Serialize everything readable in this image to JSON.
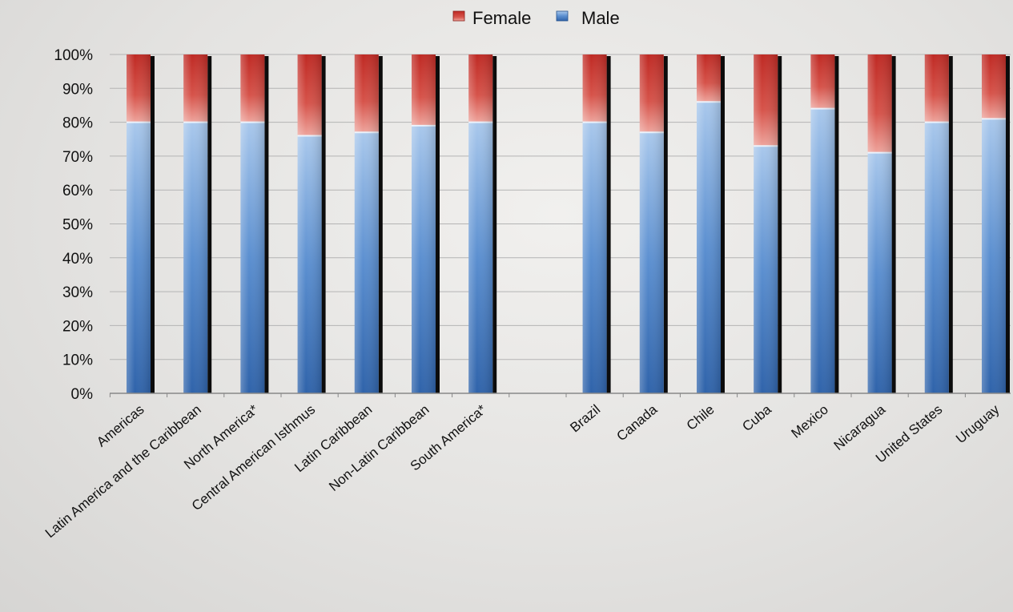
{
  "chart_data": {
    "type": "bar",
    "stacked": true,
    "percent": true,
    "categories": [
      "Americas",
      "Latin America and the Caribbean",
      "North America*",
      "Central American Isthmus",
      "Latin Caribbean",
      "Non-Latin Caribbean",
      "South America*",
      "",
      "Brazil",
      "Canada",
      "Chile",
      "Cuba",
      "Mexico",
      "Nicaragua",
      "United States",
      "Uruguay"
    ],
    "series": [
      {
        "name": "Male",
        "color": "#3f77c0",
        "values": [
          80,
          80,
          80,
          76,
          77,
          79,
          80,
          null,
          80,
          77,
          86,
          73,
          84,
          71,
          80,
          81
        ]
      },
      {
        "name": "Female",
        "color": "#cc3a32",
        "values": [
          20,
          20,
          20,
          24,
          23,
          21,
          20,
          null,
          20,
          23,
          14,
          27,
          16,
          29,
          20,
          19
        ]
      }
    ],
    "ylim": [
      0,
      100
    ],
    "yticks": [
      "0%",
      "10%",
      "20%",
      "30%",
      "40%",
      "50%",
      "60%",
      "70%",
      "80%",
      "90%",
      "100%"
    ],
    "grid": true,
    "legend": {
      "position": "top-center",
      "entries": [
        "Female",
        "Male"
      ]
    }
  },
  "colors": {
    "male": "#3f77c0",
    "female": "#cc3a32",
    "grid": "#b4b4b4"
  }
}
